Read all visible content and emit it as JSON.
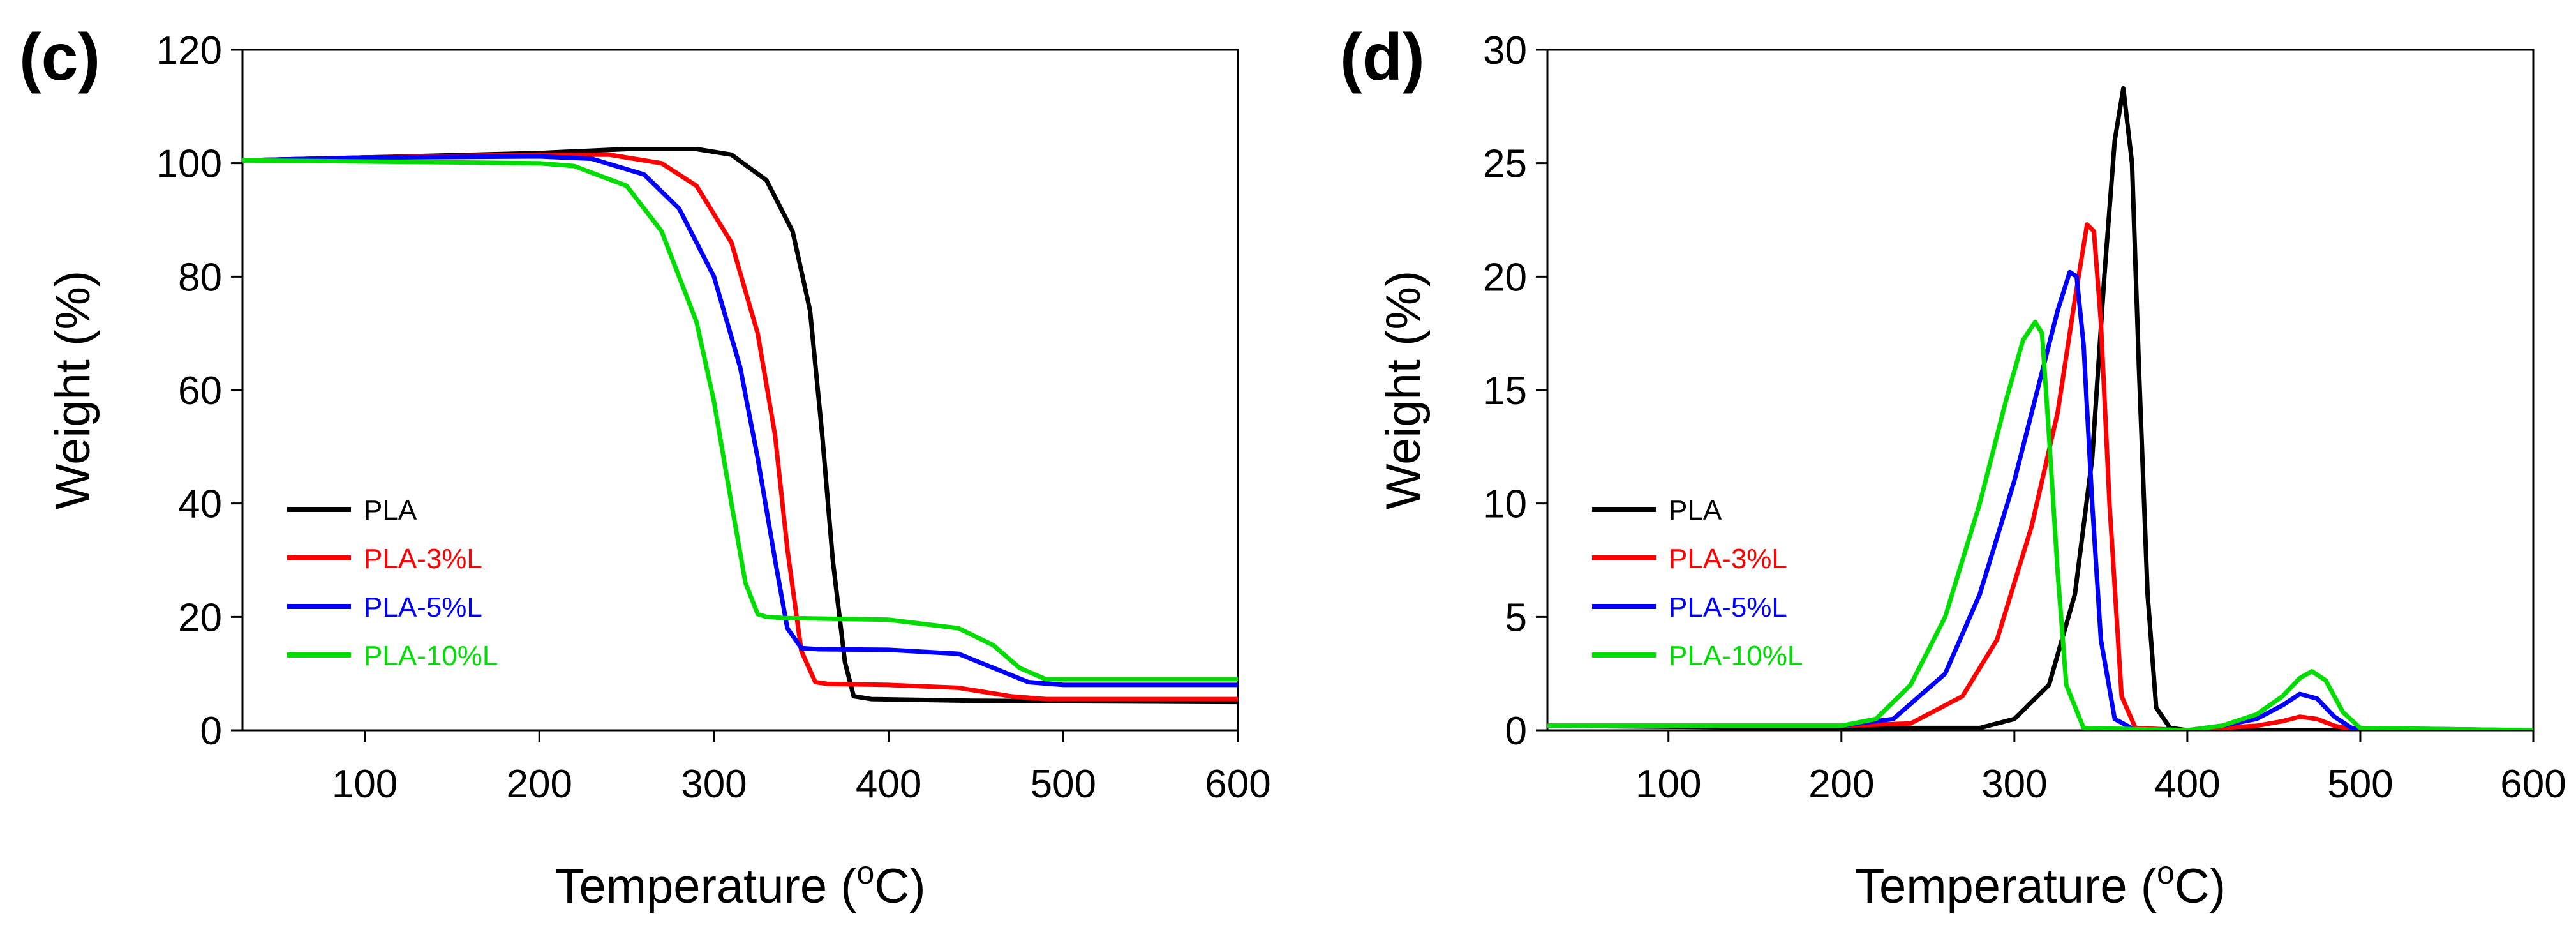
{
  "chart_data": [
    {
      "type": "line",
      "panel_label": "(c)",
      "xlabel": "Temperature (",
      "xlabel_sup": "o",
      "xlabel_unit": "C)",
      "ylabel": "Weight (%)",
      "xlim": [
        30,
        600
      ],
      "ylim": [
        0,
        120
      ],
      "xticks": [
        100,
        200,
        300,
        400,
        500,
        600
      ],
      "yticks": [
        0,
        20,
        40,
        60,
        80,
        100,
        120
      ],
      "legend_position": "lower-left",
      "series": [
        {
          "name": "PLA",
          "color": "#000000",
          "x": [
            30,
            100,
            200,
            250,
            290,
            310,
            330,
            345,
            355,
            362,
            368,
            375,
            380,
            390,
            450,
            600
          ],
          "y": [
            100.5,
            101,
            101.8,
            102.5,
            102.5,
            101.5,
            97,
            88,
            74,
            52,
            30,
            12,
            6,
            5.5,
            5.2,
            5.0
          ]
        },
        {
          "name": "PLA-3%L",
          "color": "#ff0000",
          "x": [
            30,
            100,
            200,
            240,
            270,
            290,
            310,
            325,
            335,
            342,
            350,
            358,
            365,
            400,
            440,
            470,
            490,
            600
          ],
          "y": [
            100.5,
            101,
            101.5,
            101.5,
            100,
            96,
            86,
            70,
            52,
            32,
            14,
            8.5,
            8.2,
            8.0,
            7.5,
            6.0,
            5.5,
            5.5
          ]
        },
        {
          "name": "PLA-5%L",
          "color": "#0000ff",
          "x": [
            30,
            100,
            200,
            230,
            260,
            280,
            300,
            315,
            325,
            335,
            342,
            350,
            360,
            400,
            440,
            460,
            480,
            500,
            600
          ],
          "y": [
            100.5,
            101,
            101.2,
            100.8,
            98,
            92,
            80,
            64,
            48,
            30,
            18,
            14.5,
            14.3,
            14.2,
            13.5,
            11,
            8.5,
            8.0,
            8.0
          ]
        },
        {
          "name": "PLA-10%L",
          "color": "#00dd00",
          "x": [
            30,
            100,
            200,
            220,
            250,
            270,
            290,
            300,
            310,
            318,
            325,
            330,
            340,
            400,
            440,
            460,
            475,
            490,
            600
          ],
          "y": [
            100.5,
            100.3,
            100,
            99.5,
            96,
            88,
            72,
            58,
            40,
            26,
            20.5,
            20,
            19.8,
            19.5,
            18,
            15,
            11,
            9,
            9
          ]
        }
      ]
    },
    {
      "type": "line",
      "panel_label": "(d)",
      "xlabel": "Temperature (",
      "xlabel_sup": "o",
      "xlabel_unit": "C)",
      "ylabel": "Weight (%)",
      "xlim": [
        30,
        600
      ],
      "ylim": [
        0,
        30
      ],
      "xticks": [
        100,
        200,
        300,
        400,
        500,
        600
      ],
      "yticks": [
        0,
        5,
        10,
        15,
        20,
        25,
        30
      ],
      "legend_position": "lower-left",
      "series": [
        {
          "name": "PLA",
          "color": "#000000",
          "x": [
            30,
            200,
            280,
            300,
            320,
            335,
            345,
            352,
            358,
            363,
            368,
            372,
            377,
            382,
            390,
            400,
            600
          ],
          "y": [
            0.2,
            0.1,
            0.1,
            0.5,
            2,
            6,
            12,
            20,
            26,
            28.3,
            25,
            16,
            6,
            1,
            0.1,
            0,
            0
          ]
        },
        {
          "name": "PLA-3%L",
          "color": "#ff0000",
          "x": [
            30,
            200,
            240,
            270,
            290,
            310,
            325,
            335,
            342,
            346,
            350,
            355,
            362,
            370,
            400,
            420,
            440,
            455,
            465,
            475,
            485,
            495,
            600
          ],
          "y": [
            0.2,
            0.2,
            0.3,
            1.5,
            4,
            9,
            14,
            19,
            22.3,
            22,
            18,
            10,
            1.5,
            0.1,
            0,
            0.1,
            0.2,
            0.4,
            0.6,
            0.5,
            0.2,
            0.05,
            0
          ]
        },
        {
          "name": "PLA-5%L",
          "color": "#0000ff",
          "x": [
            30,
            200,
            230,
            260,
            280,
            300,
            315,
            325,
            332,
            336,
            340,
            345,
            350,
            358,
            370,
            400,
            420,
            440,
            455,
            465,
            475,
            485,
            495,
            600
          ],
          "y": [
            0.2,
            0.2,
            0.5,
            2.5,
            6,
            11,
            15.5,
            18.5,
            20.2,
            20,
            17,
            10,
            4,
            0.5,
            0,
            0,
            0.2,
            0.5,
            1.1,
            1.6,
            1.4,
            0.6,
            0.1,
            0
          ]
        },
        {
          "name": "PLA-10%L",
          "color": "#00dd00",
          "x": [
            30,
            200,
            220,
            240,
            260,
            280,
            295,
            305,
            312,
            316,
            320,
            325,
            330,
            340,
            400,
            420,
            440,
            455,
            465,
            472,
            480,
            490,
            500,
            600
          ],
          "y": [
            0.2,
            0.2,
            0.5,
            2,
            5,
            10,
            14.5,
            17.2,
            18,
            17.5,
            13,
            7,
            2,
            0.1,
            0,
            0.2,
            0.7,
            1.5,
            2.3,
            2.6,
            2.2,
            0.8,
            0.1,
            0
          ]
        }
      ]
    }
  ]
}
